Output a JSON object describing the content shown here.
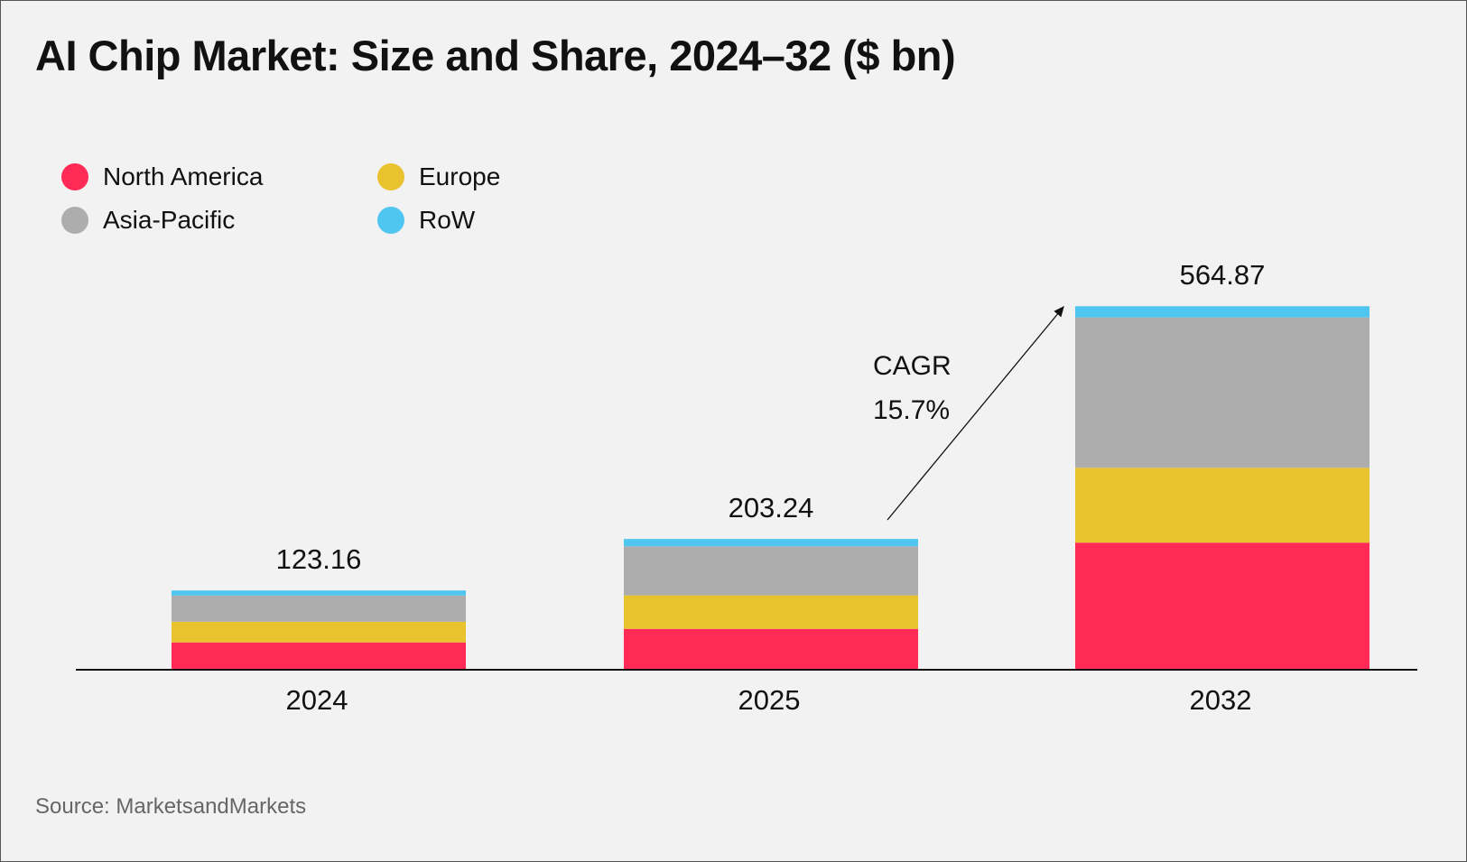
{
  "title": "AI Chip Market: Size and Share, 2024–32 ($ bn)",
  "source": "Source: MarketsandMarkets",
  "chart_data": {
    "type": "bar",
    "stacked": true,
    "title": "AI Chip Market: Size and Share, 2024–32 ($ bn)",
    "categories": [
      "2024",
      "2025",
      "2032"
    ],
    "totals": [
      "123.16",
      "203.24",
      "564.87"
    ],
    "series": [
      {
        "name": "North America",
        "color": "#ff2a56",
        "values": [
          42.5,
          63.5,
          197.5
        ]
      },
      {
        "name": "Europe",
        "color": "#e9c32e",
        "values": [
          32.0,
          52.0,
          116.2
        ]
      },
      {
        "name": "Asia-Pacific",
        "color": "#adadad",
        "values": [
          40.8,
          76.3,
          233.8
        ]
      },
      {
        "name": "RoW",
        "color": "#4fc6f0",
        "values": [
          7.86,
          11.44,
          17.37
        ]
      }
    ],
    "legend_order": [
      "North America",
      "Europe",
      "Asia-Pacific",
      "RoW"
    ],
    "legend_placement": "top-left",
    "annotation": {
      "line1": "CAGR",
      "line2": "15.7%",
      "from": "2025",
      "to": "2032"
    },
    "grid": false,
    "y_axis_shown": false
  }
}
